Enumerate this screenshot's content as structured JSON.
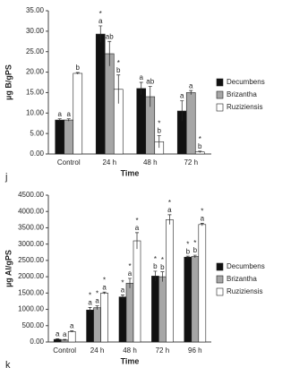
{
  "chart_data": [
    {
      "type": "bar",
      "panel_label": "j",
      "y_label": "µg B/gPS",
      "x_label": "Time",
      "categories": [
        "Control",
        "24 h",
        "48 h",
        "72 h"
      ],
      "series": [
        {
          "name": "Decumbens",
          "color": "#111111",
          "values": [
            8.3,
            29.3,
            16.0,
            10.5
          ],
          "errors": [
            0.3,
            2.0,
            1.5,
            2.5
          ],
          "letters": [
            "a",
            "a",
            "a",
            "a"
          ],
          "stars": [
            null,
            "*",
            null,
            null
          ]
        },
        {
          "name": "Brizantha",
          "color": "#a6a6a6",
          "values": [
            8.3,
            24.5,
            14.0,
            15.0
          ],
          "errors": [
            0.3,
            3.0,
            2.5,
            0.5
          ],
          "letters": [
            "a",
            "ab",
            "ab",
            "a"
          ],
          "stars": [
            null,
            null,
            null,
            null
          ]
        },
        {
          "name": "Ruziziensis",
          "color": "#ffffff",
          "values": [
            19.7,
            15.8,
            3.0,
            0.5
          ],
          "errors": [
            0.2,
            3.5,
            1.5,
            0.2
          ],
          "letters": [
            "b",
            "b",
            "b",
            "b"
          ],
          "stars": [
            null,
            "*",
            "*",
            "*"
          ]
        }
      ],
      "ylim": [
        0,
        35
      ],
      "yticks": [
        {
          "value": 0,
          "label": "0.00"
        },
        {
          "value": 5,
          "label": "5.00"
        },
        {
          "value": 10,
          "label": "10.00"
        },
        {
          "value": 15,
          "label": "15.00"
        },
        {
          "value": 20,
          "label": "20.00"
        },
        {
          "value": 25,
          "label": "25.00"
        },
        {
          "value": 30,
          "label": "30.00"
        },
        {
          "value": 35,
          "label": "35.00"
        }
      ]
    },
    {
      "type": "bar",
      "panel_label": "k",
      "y_label": "µg Al/gPS",
      "x_label": "Time",
      "categories": [
        "Control",
        "24 h",
        "48 h",
        "72 h",
        "96 h"
      ],
      "series": [
        {
          "name": "Decumbens",
          "color": "#111111",
          "values": [
            80,
            980,
            1380,
            2020,
            2600
          ],
          "errors": [
            20,
            80,
            60,
            150,
            30
          ],
          "letters": [
            "a",
            "a",
            "a",
            "b",
            "b"
          ],
          "stars": [
            null,
            "*",
            "*",
            "*",
            "*"
          ]
        },
        {
          "name": "Brizantha",
          "color": "#a6a6a6",
          "values": [
            60,
            1050,
            1800,
            2000,
            2620
          ],
          "errors": [
            20,
            60,
            150,
            150,
            40
          ],
          "letters": [
            "a",
            "a",
            "a",
            "b",
            "b"
          ],
          "stars": [
            null,
            "*",
            "*",
            "*",
            "*"
          ]
        },
        {
          "name": "Ruziziensis",
          "color": "#ffffff",
          "values": [
            320,
            1500,
            3100,
            3750,
            3600
          ],
          "errors": [
            20,
            30,
            250,
            150,
            40
          ],
          "letters": [
            "a",
            "a",
            "a",
            "a",
            "a"
          ],
          "stars": [
            null,
            "*",
            "*",
            "*",
            "*"
          ]
        }
      ],
      "ylim": [
        0,
        4500
      ],
      "yticks": [
        {
          "value": 0,
          "label": "0.00"
        },
        {
          "value": 500,
          "label": "500.00"
        },
        {
          "value": 1000,
          "label": "1000.00"
        },
        {
          "value": 1500,
          "label": "1500.00"
        },
        {
          "value": 2000,
          "label": "2000.00"
        },
        {
          "value": 2500,
          "label": "2500.00"
        },
        {
          "value": 3000,
          "label": "3000.00"
        },
        {
          "value": 3500,
          "label": "3500.00"
        },
        {
          "value": 4000,
          "label": "4000.00"
        },
        {
          "value": 4500,
          "label": "4500.00"
        }
      ]
    }
  ]
}
